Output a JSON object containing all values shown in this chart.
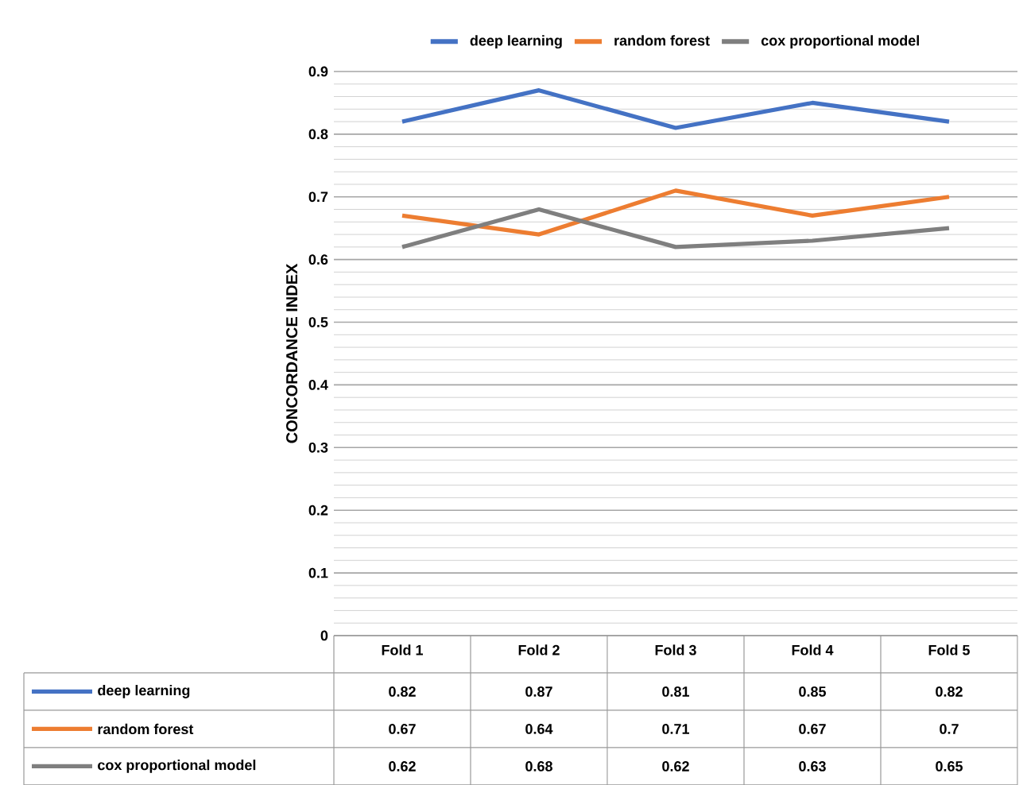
{
  "chart_data": {
    "type": "line",
    "ylabel": "CONCORDANCE INDEX",
    "categories": [
      "Fold 1",
      "Fold 2",
      "Fold 3",
      "Fold 4",
      "Fold 5"
    ],
    "series": [
      {
        "name": "deep learning",
        "color": "#4472c4",
        "values": [
          0.82,
          0.87,
          0.81,
          0.85,
          0.82
        ],
        "value_labels": [
          "0.82",
          "0.87",
          "0.81",
          "0.85",
          "0.82"
        ]
      },
      {
        "name": "random forest",
        "color": "#ed7d31",
        "values": [
          0.67,
          0.64,
          0.71,
          0.67,
          0.7
        ],
        "value_labels": [
          "0.67",
          "0.64",
          "0.71",
          "0.67",
          "0.7"
        ]
      },
      {
        "name": "cox proportional model",
        "color": "#7f7f7f",
        "values": [
          0.62,
          0.68,
          0.62,
          0.63,
          0.65
        ],
        "value_labels": [
          "0.62",
          "0.68",
          "0.62",
          "0.63",
          "0.65"
        ]
      }
    ],
    "ylim": [
      0,
      0.9
    ],
    "yticks": [
      0,
      0.1,
      0.2,
      0.3,
      0.4,
      0.5,
      0.6,
      0.7,
      0.8,
      0.9
    ],
    "grid": "y",
    "legend": "top",
    "marker": "none",
    "line_style": "solid"
  }
}
